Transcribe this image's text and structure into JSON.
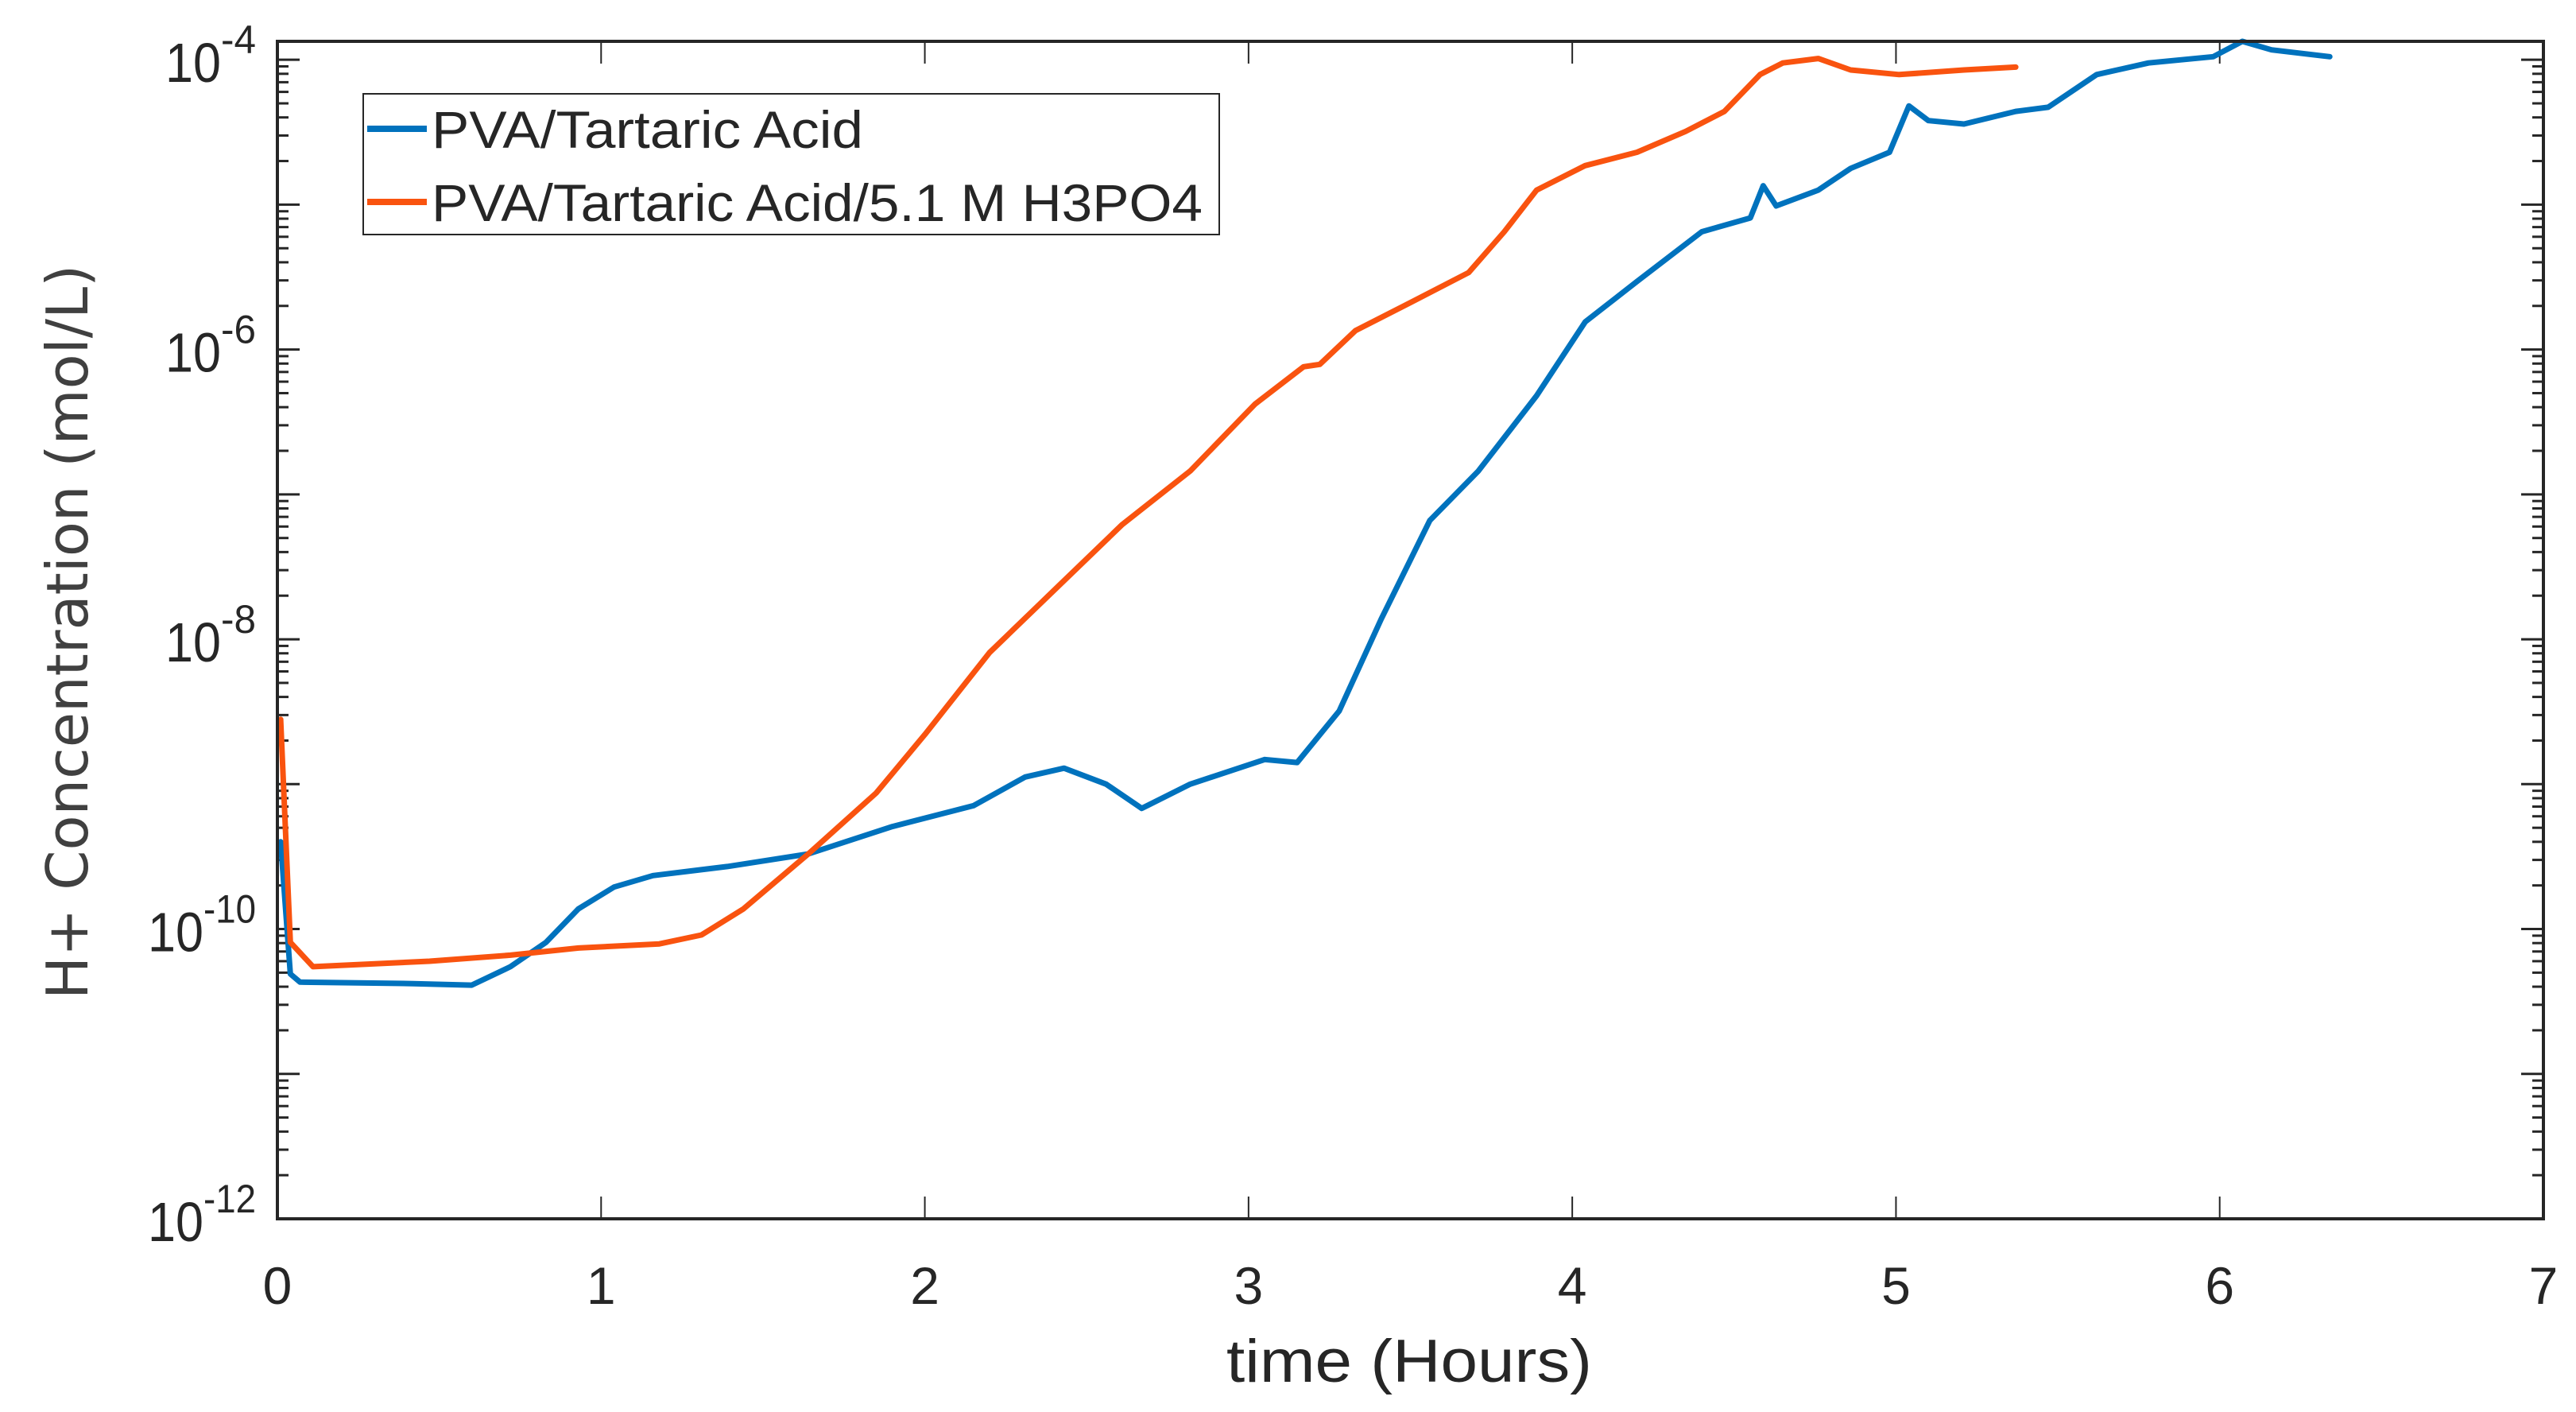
{
  "chart_data": {
    "type": "line",
    "title": "",
    "xlabel": "time (Hours)",
    "ylabel": "H+ Concentration (mol/L)",
    "xlim": [
      0,
      7
    ],
    "ylim": [
      1e-12,
      0.000134
    ],
    "yscale": "log",
    "grid": false,
    "legend_position": "top-left",
    "x_ticks": [
      0,
      1,
      2,
      3,
      4,
      5,
      6,
      7
    ],
    "x_tick_labels": [
      "0",
      "1",
      "2",
      "3",
      "4",
      "5",
      "6",
      "7"
    ],
    "y_ticks": [
      1e-12,
      1e-10,
      1e-08,
      1e-06,
      0.0001
    ],
    "y_tick_labels": [
      {
        "base": "10",
        "exp": "-12"
      },
      {
        "base": "10",
        "exp": "-10"
      },
      {
        "base": "10",
        "exp": "-8"
      },
      {
        "base": "10",
        "exp": "-6"
      },
      {
        "base": "10",
        "exp": "-4"
      }
    ],
    "series": [
      {
        "name": "PVA/Tartaric Acid",
        "color": "#0072BD",
        "x": [
          0.01,
          0.04,
          0.07,
          0.42,
          0.6,
          0.72,
          0.83,
          0.93,
          1.04,
          1.16,
          1.39,
          1.64,
          1.9,
          2.15,
          2.31,
          2.43,
          2.56,
          2.67,
          2.82,
          3.05,
          3.15,
          3.28,
          3.41,
          3.56,
          3.71,
          3.89,
          4.04,
          4.2,
          4.4,
          4.55,
          4.59,
          4.63,
          4.76,
          4.86,
          4.98,
          5.04,
          5.1,
          5.21,
          5.37,
          5.47,
          5.62,
          5.78,
          5.98,
          6.07,
          6.16,
          6.34
        ],
        "y": [
          4e-10,
          4.9e-11,
          4.3e-11,
          4.2e-11,
          4.1e-11,
          5.5e-11,
          8.1e-11,
          1.38e-10,
          1.95e-10,
          2.34e-10,
          2.7e-10,
          3.3e-10,
          5.1e-10,
          7.1e-10,
          1.12e-09,
          1.29e-09,
          1e-09,
          6.8e-10,
          1e-09,
          1.48e-09,
          1.41e-09,
          3.2e-09,
          1.38e-08,
          6.6e-08,
          1.45e-07,
          4.8e-07,
          1.55e-06,
          2.95e-06,
          6.5e-06,
          8.1e-06,
          1.35e-05,
          9.8e-06,
          1.26e-05,
          1.78e-05,
          2.3e-05,
          4.8e-05,
          3.8e-05,
          3.6e-05,
          4.4e-05,
          4.7e-05,
          7.9e-05,
          9.5e-05,
          0.000105,
          0.000134,
          0.000117,
          0.000105
        ]
      },
      {
        "name": "PVA/Tartaric Acid/5.1 M H3PO4",
        "color": "#F9530F",
        "x": [
          0.01,
          0.04,
          0.11,
          0.47,
          0.72,
          0.93,
          1.18,
          1.31,
          1.44,
          1.64,
          1.85,
          2.0,
          2.2,
          2.41,
          2.61,
          2.82,
          3.02,
          3.17,
          3.22,
          3.33,
          3.48,
          3.68,
          3.79,
          3.89,
          4.04,
          4.2,
          4.35,
          4.47,
          4.58,
          4.65,
          4.76,
          4.86,
          5.01,
          5.21,
          5.37
        ],
        "y": [
          2.8e-09,
          8.1e-11,
          5.5e-11,
          6e-11,
          6.6e-11,
          7.4e-11,
          7.9e-11,
          9.1e-11,
          1.38e-10,
          3.3e-10,
          8.7e-10,
          2.2e-09,
          8.1e-09,
          2.3e-08,
          6.2e-08,
          1.45e-07,
          4.2e-07,
          7.6e-07,
          7.9e-07,
          1.35e-06,
          2e-06,
          3.4e-06,
          6.5e-06,
          1.26e-05,
          1.86e-05,
          2.3e-05,
          3.2e-05,
          4.4e-05,
          7.9e-05,
          9.5e-05,
          0.000102,
          8.5e-05,
          7.9e-05,
          8.5e-05,
          8.9e-05
        ]
      }
    ]
  }
}
